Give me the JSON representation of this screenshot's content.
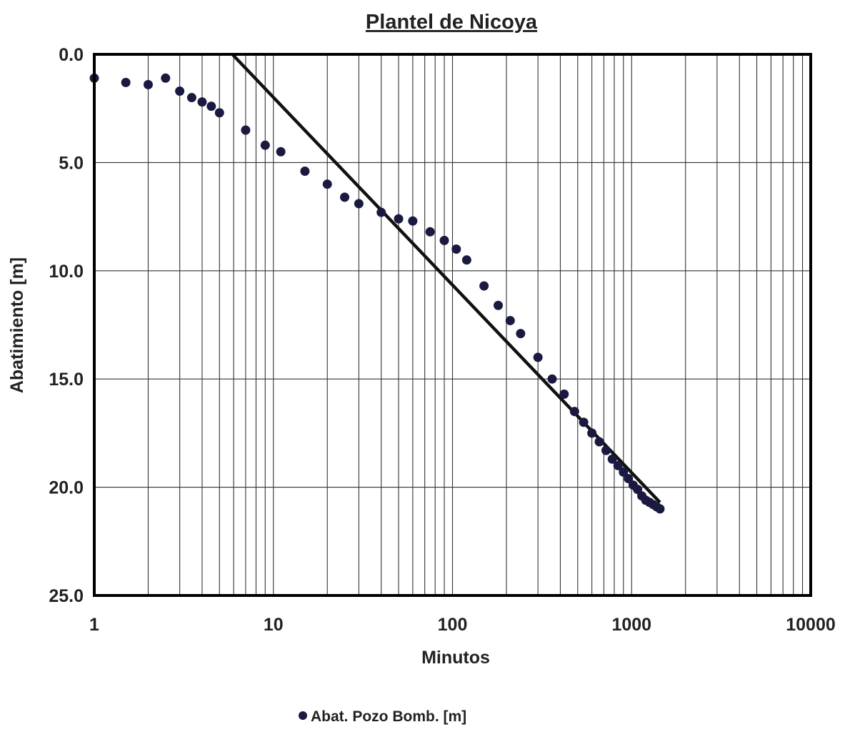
{
  "chart_data": {
    "type": "scatter",
    "title": "Plantel de Nicoya",
    "xlabel": "Minutos",
    "ylabel": "Abatimiento [m]",
    "x_scale": "log",
    "xlim": [
      1,
      10000
    ],
    "ylim": [
      25,
      0
    ],
    "y_reversed": true,
    "grid": true,
    "legend_position": "bottom-center",
    "x_ticks": [
      "1",
      "10",
      "100",
      "1000",
      "10000"
    ],
    "y_ticks": [
      "0.0",
      "5.0",
      "10.0",
      "15.0",
      "20.0",
      "25.0"
    ],
    "series": [
      {
        "name": "Abat. Pozo Bomb. [m]",
        "marker": "circle",
        "color": "#1a1a40",
        "points": [
          [
            1,
            1.1
          ],
          [
            1.5,
            1.3
          ],
          [
            2,
            1.4
          ],
          [
            2.5,
            1.1
          ],
          [
            3,
            1.7
          ],
          [
            3.5,
            2.0
          ],
          [
            4,
            2.2
          ],
          [
            4.5,
            2.4
          ],
          [
            5,
            2.7
          ],
          [
            7,
            3.5
          ],
          [
            9,
            4.2
          ],
          [
            11,
            4.5
          ],
          [
            15,
            5.4
          ],
          [
            20,
            6.0
          ],
          [
            25,
            6.6
          ],
          [
            30,
            6.9
          ],
          [
            40,
            7.3
          ],
          [
            50,
            7.6
          ],
          [
            60,
            7.7
          ],
          [
            75,
            8.2
          ],
          [
            90,
            8.6
          ],
          [
            105,
            9.0
          ],
          [
            120,
            9.5
          ],
          [
            150,
            10.7
          ],
          [
            180,
            11.6
          ],
          [
            210,
            12.3
          ],
          [
            240,
            12.9
          ],
          [
            300,
            14.0
          ],
          [
            360,
            15.0
          ],
          [
            420,
            15.7
          ],
          [
            480,
            16.5
          ],
          [
            540,
            17.0
          ],
          [
            600,
            17.5
          ],
          [
            660,
            17.9
          ],
          [
            720,
            18.3
          ],
          [
            780,
            18.7
          ],
          [
            840,
            19.0
          ],
          [
            900,
            19.3
          ],
          [
            960,
            19.6
          ],
          [
            1020,
            19.9
          ],
          [
            1080,
            20.1
          ],
          [
            1140,
            20.4
          ],
          [
            1200,
            20.6
          ],
          [
            1260,
            20.7
          ],
          [
            1320,
            20.8
          ],
          [
            1380,
            20.9
          ],
          [
            1440,
            21.0
          ]
        ]
      },
      {
        "type": "line",
        "color": "#111111",
        "points": [
          [
            5.9,
            0.0
          ],
          [
            1440,
            20.7
          ]
        ]
      }
    ]
  }
}
